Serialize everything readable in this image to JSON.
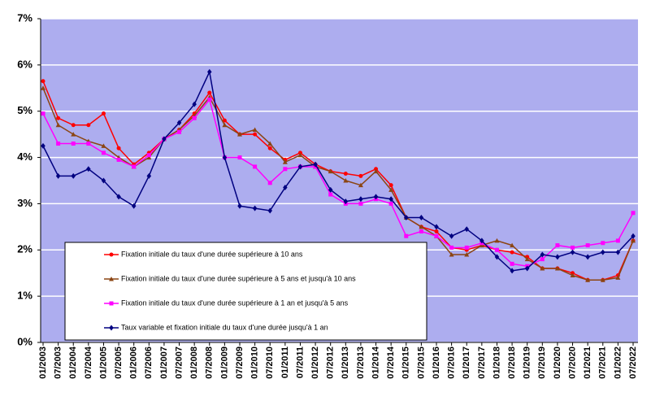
{
  "chart_data": {
    "type": "line",
    "categories": [
      "01/2003",
      "07/2003",
      "01/2004",
      "07/2004",
      "01/2005",
      "07/2005",
      "01/2006",
      "07/2006",
      "01/2007",
      "07/2007",
      "01/2008",
      "07/2008",
      "01/2009",
      "07/2009",
      "01/2010",
      "07/2010",
      "01/2011",
      "07/2011",
      "01/2012",
      "07/2012",
      "01/2013",
      "07/2013",
      "01/2014",
      "07/2014",
      "01/2015",
      "07/2015",
      "01/2016",
      "07/2016",
      "01/2017",
      "07/2017",
      "01/2018",
      "07/2018",
      "01/2019",
      "07/2019",
      "01/2020",
      "07/2020",
      "01/2021",
      "07/2021",
      "01/2022",
      "07/2022"
    ],
    "series": [
      {
        "name": "Fixation initiale du taux d'une durée supérieure à 10 ans",
        "color": "#ff0000",
        "marker": "circle",
        "values": [
          5.65,
          4.85,
          4.7,
          4.7,
          4.95,
          4.2,
          3.85,
          4.1,
          4.4,
          4.6,
          4.95,
          5.4,
          4.8,
          4.5,
          4.5,
          4.2,
          3.95,
          4.1,
          3.85,
          3.7,
          3.65,
          3.6,
          3.75,
          3.4,
          2.7,
          2.5,
          2.4,
          2.05,
          2.0,
          2.1,
          2.0,
          1.95,
          1.85,
          1.6,
          1.6,
          1.5,
          1.35,
          1.35,
          1.45,
          2.2
        ]
      },
      {
        "name": "Fixation initiale du taux d'une durée supérieure à 5 ans et  jusqu'à 10 ans",
        "color": "#8b4513",
        "marker": "triangle",
        "values": [
          5.5,
          4.7,
          4.5,
          4.35,
          4.25,
          4.0,
          3.8,
          4.0,
          4.4,
          4.6,
          4.9,
          5.3,
          4.7,
          4.5,
          4.6,
          4.3,
          3.9,
          4.05,
          3.8,
          3.7,
          3.5,
          3.4,
          3.7,
          3.3,
          2.7,
          2.5,
          2.3,
          1.9,
          1.9,
          2.1,
          2.2,
          2.1,
          1.8,
          1.6,
          1.6,
          1.45,
          1.35,
          1.35,
          1.4,
          2.2
        ]
      },
      {
        "name": "Fixation initiale du taux d'une durée supérieure à 1 an et  jusqu'à 5 ans",
        "color": "#ff00ff",
        "marker": "square",
        "values": [
          4.95,
          4.3,
          4.3,
          4.3,
          4.1,
          3.95,
          3.8,
          4.05,
          4.4,
          4.55,
          4.85,
          5.25,
          4.0,
          4.0,
          3.8,
          3.45,
          3.75,
          3.8,
          3.8,
          3.2,
          3.0,
          3.0,
          3.1,
          3.0,
          2.3,
          2.4,
          2.3,
          2.05,
          2.05,
          2.15,
          2.0,
          1.7,
          1.65,
          1.8,
          2.1,
          2.05,
          2.1,
          2.15,
          2.2,
          2.8
        ]
      },
      {
        "name": "Taux variable et fixation initiale du taux d'une durée jusqu'à 1 an",
        "color": "#000080",
        "marker": "diamond",
        "values": [
          4.25,
          3.6,
          3.6,
          3.75,
          3.5,
          3.15,
          2.95,
          3.6,
          4.4,
          4.75,
          5.15,
          5.85,
          4.0,
          2.95,
          2.9,
          2.85,
          3.35,
          3.8,
          3.85,
          3.3,
          3.05,
          3.1,
          3.15,
          3.1,
          2.7,
          2.7,
          2.5,
          2.3,
          2.45,
          2.2,
          1.85,
          1.55,
          1.6,
          1.9,
          1.85,
          1.95,
          1.85,
          1.95,
          1.95,
          2.3
        ]
      }
    ],
    "ylim": [
      0,
      7
    ],
    "yticks": [
      {
        "value": 0,
        "label": "0%"
      },
      {
        "value": 1,
        "label": "1%"
      },
      {
        "value": 2,
        "label": "2%"
      },
      {
        "value": 3,
        "label": "3%"
      },
      {
        "value": 4,
        "label": "4%"
      },
      {
        "value": 5,
        "label": "5%"
      },
      {
        "value": 6,
        "label": "6%"
      },
      {
        "value": 7,
        "label": "7%"
      }
    ],
    "grid": true,
    "plot_background": "#adadef"
  }
}
